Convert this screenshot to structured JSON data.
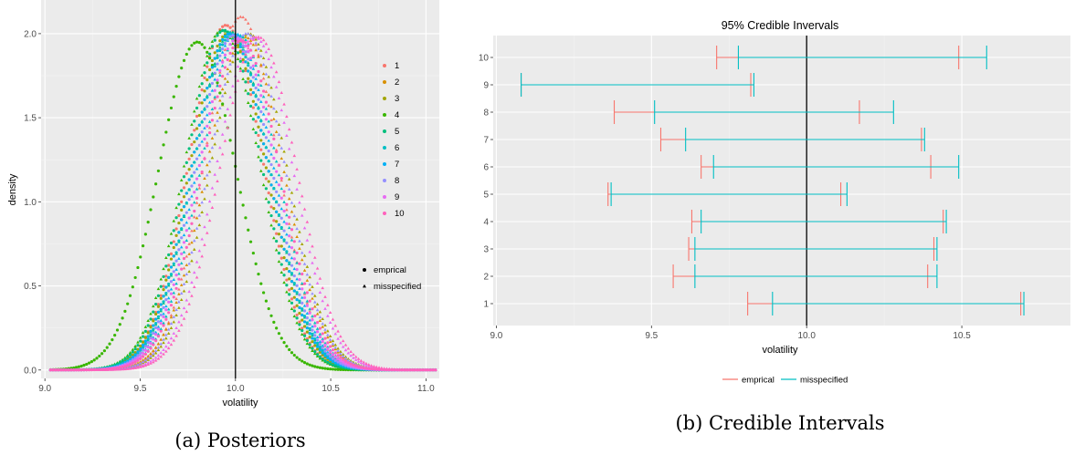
{
  "chart_data": [
    {
      "type": "scatter",
      "caption": "(a) Posteriors",
      "xlabel": "volatility",
      "ylabel": "density",
      "xlim": [
        8.98,
        11.07
      ],
      "ylim": [
        -0.05,
        2.2
      ],
      "x_ticks": [
        "9.0",
        "9.5",
        "10.0",
        "10.5",
        "11.0"
      ],
      "y_ticks": [
        "0.0",
        "0.5",
        "1.0",
        "1.5",
        "2.0"
      ],
      "x_tick_values": [
        9.0,
        9.5,
        10.0,
        10.5,
        11.0
      ],
      "y_tick_values": [
        0.0,
        0.5,
        1.0,
        1.5,
        2.0
      ],
      "vline": 10.0,
      "x_range": [
        9.03,
        11.05
      ],
      "color_legend": [
        "1",
        "2",
        "3",
        "4",
        "5",
        "6",
        "7",
        "8",
        "9",
        "10"
      ],
      "shape_legend": [
        "emprical",
        "misspecified"
      ],
      "series": [
        {
          "name": "1",
          "color": "#F8766D",
          "mean_emp": 9.95,
          "mean_mis": 10.03,
          "peak_emp": 2.05,
          "peak_mis": 2.1
        },
        {
          "name": "2",
          "color": "#D89000",
          "mean_emp": 9.97,
          "mean_mis": 10.05,
          "peak_emp": 2.0,
          "peak_mis": 1.98
        },
        {
          "name": "3",
          "color": "#A3A500",
          "mean_emp": 9.96,
          "mean_mis": 10.07,
          "peak_emp": 2.0,
          "peak_mis": 2.0
        },
        {
          "name": "4",
          "color": "#39B600",
          "mean_emp": 9.8,
          "mean_mis": 9.93,
          "peak_emp": 1.95,
          "peak_mis": 2.02
        },
        {
          "name": "5",
          "color": "#00BF7D",
          "mean_emp": 9.94,
          "mean_mis": 9.98,
          "peak_emp": 2.02,
          "peak_mis": 2.01
        },
        {
          "name": "6",
          "color": "#00BFC4",
          "mean_emp": 9.98,
          "mean_mis": 10.02,
          "peak_emp": 1.99,
          "peak_mis": 1.99
        },
        {
          "name": "7",
          "color": "#00B0F6",
          "mean_emp": 9.97,
          "mean_mis": 10.0,
          "peak_emp": 2.0,
          "peak_mis": 2.0
        },
        {
          "name": "8",
          "color": "#9590FF",
          "mean_emp": 9.99,
          "mean_mis": 10.06,
          "peak_emp": 1.99,
          "peak_mis": 2.0
        },
        {
          "name": "9",
          "color": "#E76BF3",
          "mean_emp": 10.01,
          "mean_mis": 10.1,
          "peak_emp": 1.97,
          "peak_mis": 1.98
        },
        {
          "name": "10",
          "color": "#FF62BC",
          "mean_emp": 10.03,
          "mean_mis": 10.12,
          "peak_emp": 1.96,
          "peak_mis": 1.98
        }
      ]
    },
    {
      "type": "errorbar",
      "title": "95% Credible Invervals",
      "caption": "(b) Credible Intervals",
      "xlabel": "volatility",
      "xlim": [
        8.99,
        10.85
      ],
      "x_ticks": [
        "9.0",
        "9.5",
        "10.0",
        "10.5"
      ],
      "x_tick_values": [
        9.0,
        9.5,
        10.0,
        10.5
      ],
      "categories": [
        "1",
        "2",
        "3",
        "4",
        "5",
        "6",
        "7",
        "8",
        "9",
        "10"
      ],
      "vline": 10.0,
      "legend": [
        "emprical",
        "misspecified"
      ],
      "legend_position": "bottom",
      "series": [
        {
          "name": "emprical",
          "color": "#F8766D",
          "lower": [
            9.81,
            9.57,
            9.62,
            9.63,
            9.36,
            9.66,
            9.53,
            9.38,
            9.08,
            9.71
          ],
          "upper": [
            10.69,
            10.39,
            10.41,
            10.44,
            10.11,
            10.4,
            10.37,
            10.17,
            9.82,
            10.49
          ]
        },
        {
          "name": "misspecified",
          "color": "#00BFC4",
          "lower": [
            9.89,
            9.64,
            9.64,
            9.66,
            9.37,
            9.7,
            9.61,
            9.51,
            9.08,
            9.78
          ],
          "upper": [
            10.7,
            10.42,
            10.42,
            10.45,
            10.13,
            10.49,
            10.38,
            10.28,
            9.83,
            10.58
          ]
        }
      ]
    }
  ]
}
